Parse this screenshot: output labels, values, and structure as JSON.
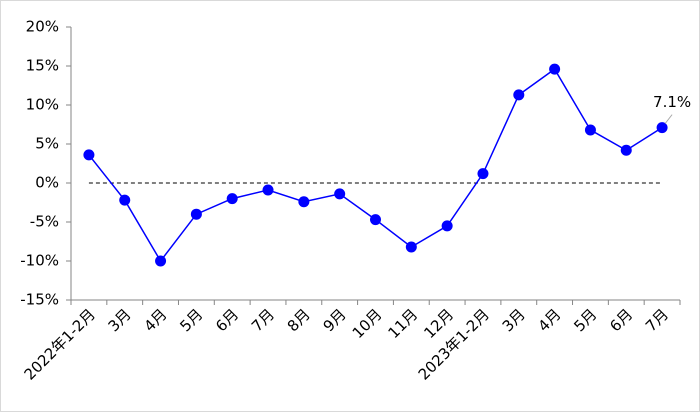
{
  "chart_data": {
    "type": "line",
    "categories": [
      "2022年1-2月",
      "3月",
      "4月",
      "5月",
      "6月",
      "7月",
      "8月",
      "9月",
      "10月",
      "11月",
      "12月",
      "2023年1-2月",
      "3月",
      "4月",
      "5月",
      "6月",
      "7月"
    ],
    "series": [
      {
        "color": "#0000ff",
        "values": [
          3.6,
          -2.2,
          -10.0,
          -4.0,
          -2.0,
          -0.9,
          -2.4,
          -1.4,
          -4.7,
          -8.2,
          -5.5,
          1.2,
          11.3,
          14.6,
          6.8,
          4.2,
          7.1
        ],
        "value_labels": [
          null,
          null,
          null,
          null,
          null,
          null,
          null,
          null,
          null,
          null,
          null,
          null,
          null,
          null,
          null,
          null,
          "7.1%"
        ]
      }
    ],
    "ylim": [
      -15,
      20
    ],
    "yticks": [
      {
        "value": -15,
        "label": "-15%"
      },
      {
        "value": -10,
        "label": "-10%"
      },
      {
        "value": -5,
        "label": "-5%"
      },
      {
        "value": 0,
        "label": "0%"
      },
      {
        "value": 5,
        "label": "5%"
      },
      {
        "value": 10,
        "label": "10%"
      },
      {
        "value": 15,
        "label": "15%"
      },
      {
        "value": 20,
        "label": "20%"
      }
    ],
    "zero_line": true
  }
}
